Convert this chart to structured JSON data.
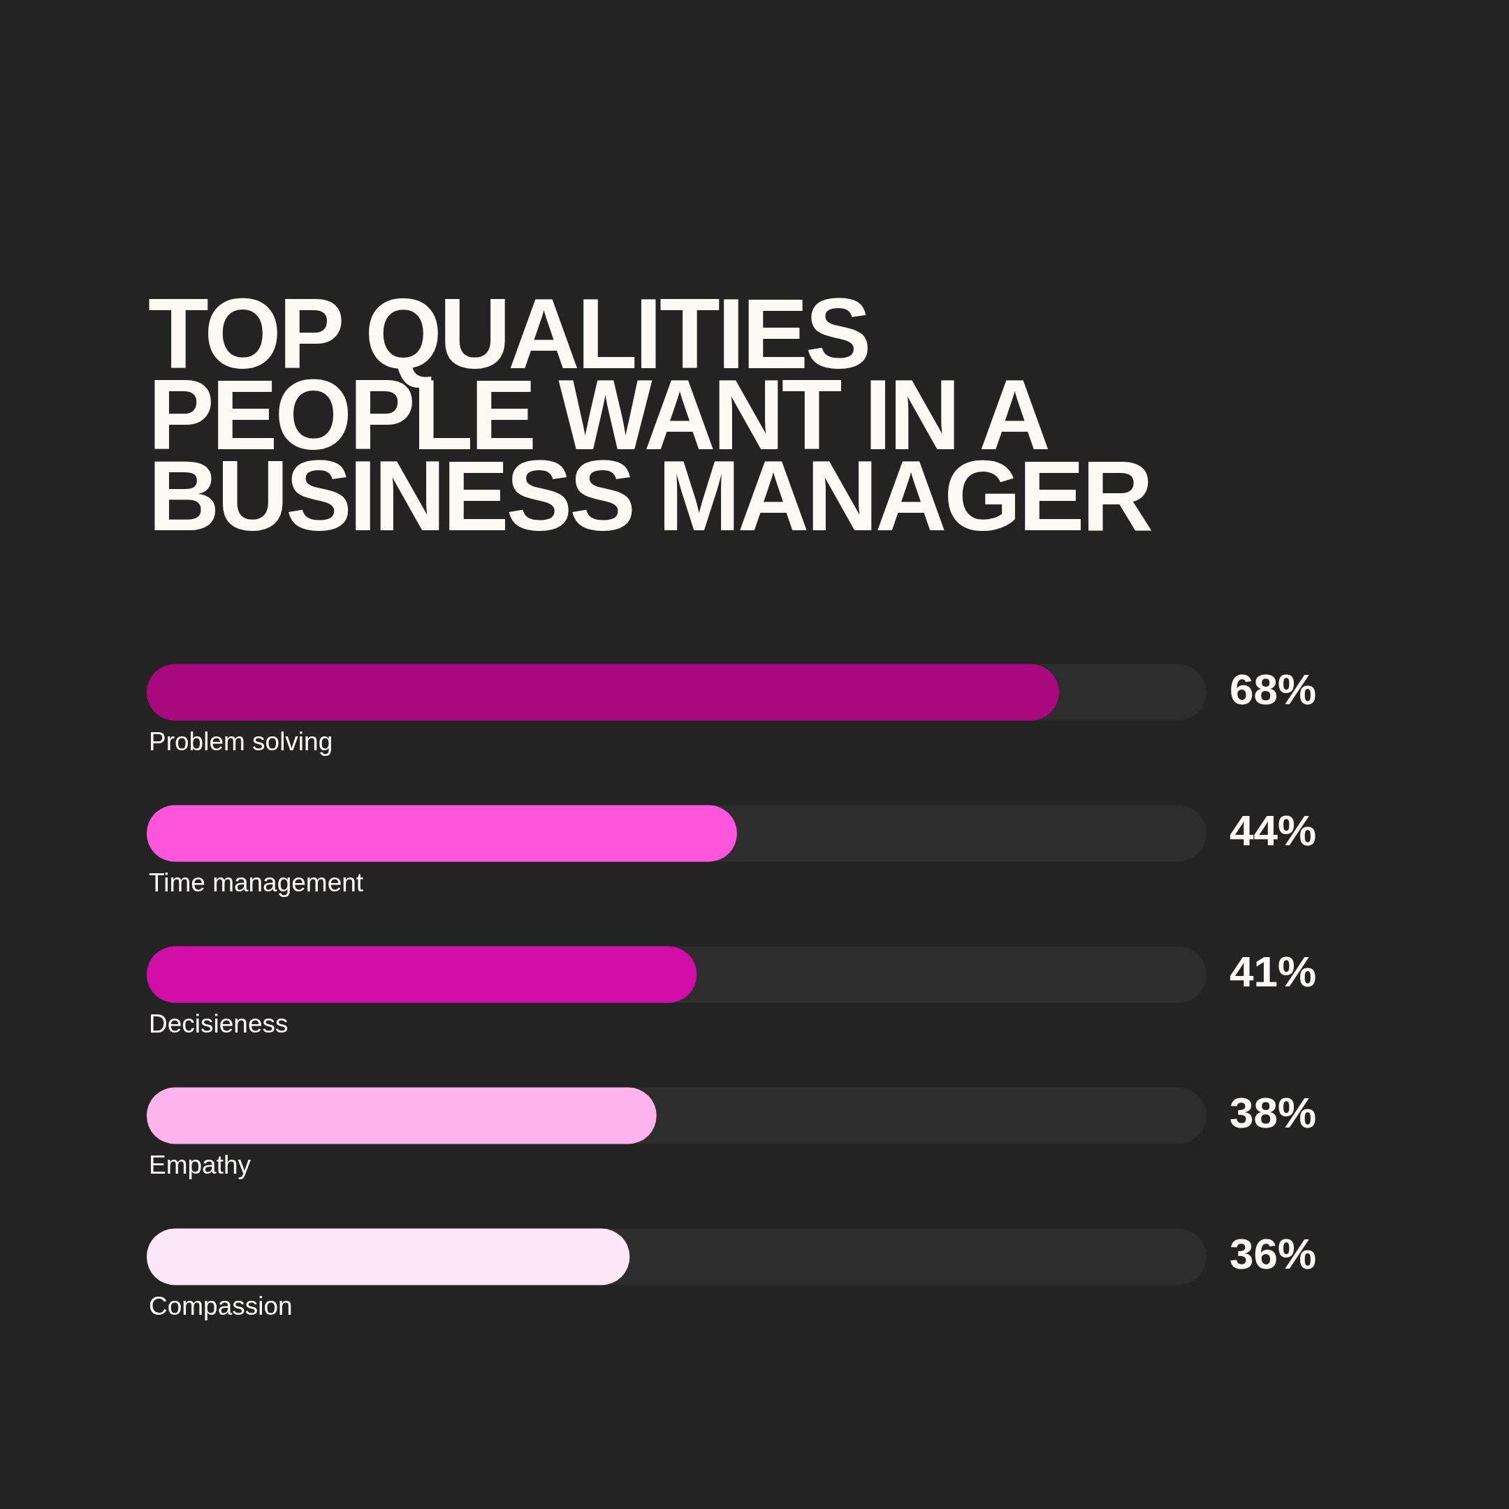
{
  "chart_data": {
    "type": "bar",
    "orientation": "horizontal",
    "title": "TOP QUALITIES PEOPLE WANT IN A BUSINESS MANAGER",
    "categories": [
      "Problem solving",
      "Time management",
      "Decisieness",
      "Empathy",
      "Compassion"
    ],
    "values": [
      68,
      44,
      41,
      38,
      36
    ],
    "colors": [
      "#a8097f",
      "#ff55dd",
      "#d10fa8",
      "#ffb3ec",
      "#fde8f8"
    ],
    "value_labels": [
      "68%",
      "44%",
      "41%",
      "38%",
      "36%"
    ],
    "xlim": [
      0,
      79
    ]
  }
}
